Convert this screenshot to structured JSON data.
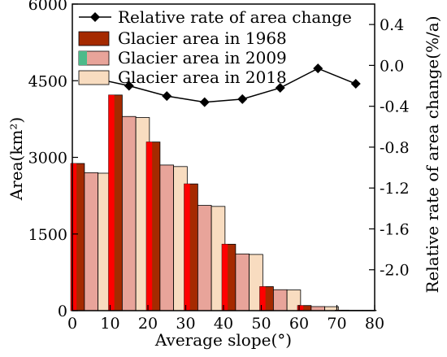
{
  "chart_data": {
    "type": "bar",
    "x_label": "Average slope(°)",
    "y_label_left": "Area(km²)",
    "y_label_right": "Relative rate of area change(%/a)",
    "x_range": [
      0,
      80
    ],
    "y_left_range": [
      0,
      6000
    ],
    "y_right_range": [
      -2.4,
      0.6
    ],
    "x_ticks": [
      "0",
      "10",
      "20",
      "30",
      "40",
      "50",
      "60",
      "70",
      "80"
    ],
    "y_left_ticks": [
      "0",
      "1500",
      "3000",
      "4500",
      "6000"
    ],
    "y_right_ticks": [
      "-2.0",
      "-1.6",
      "-1.2",
      "-0.8",
      "-0.4",
      "0.0",
      "0.4"
    ],
    "categories": [
      5,
      15,
      25,
      35,
      45,
      55,
      65,
      75
    ],
    "series": [
      {
        "name": "Glacier area in 1968",
        "color": "#a52a00",
        "highlight": "#ff0000",
        "values": [
          2880,
          4220,
          3300,
          2480,
          1300,
          470,
          100,
          10
        ]
      },
      {
        "name": "Glacier area in 2009",
        "color": "#e8a49a",
        "values": [
          2700,
          3800,
          2850,
          2060,
          1110,
          410,
          80,
          8
        ]
      },
      {
        "name": "Glacier area in 2018",
        "color": "#f8dcc0",
        "values": [
          2690,
          3780,
          2820,
          2040,
          1100,
          405,
          78,
          8
        ]
      }
    ],
    "line_series": {
      "name": "Relative rate of area change",
      "color": "#000000",
      "x": [
        5,
        15,
        25,
        35,
        45,
        55,
        65,
        75
      ],
      "values": [
        -0.12,
        -0.2,
        -0.3,
        -0.36,
        -0.33,
        -0.22,
        -0.03,
        -0.18
      ]
    },
    "legend_position": "top"
  }
}
